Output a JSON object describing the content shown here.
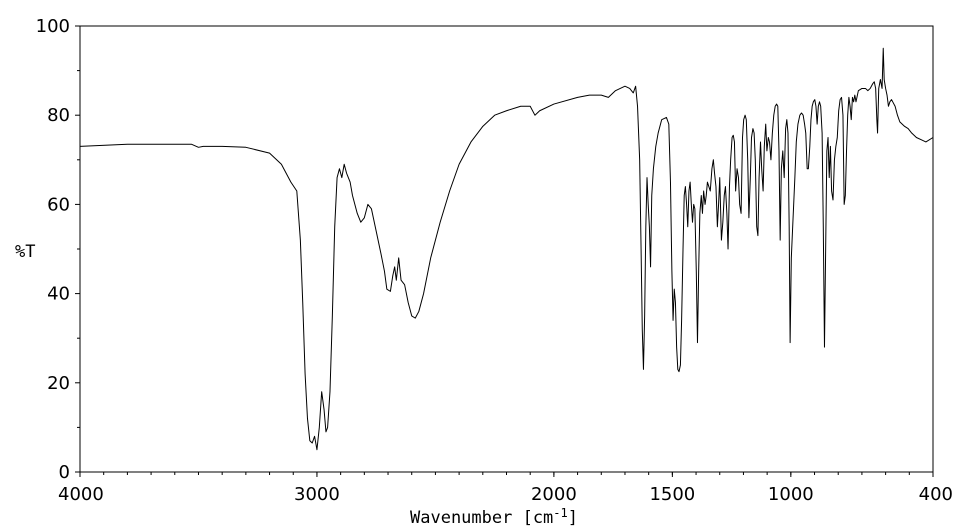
{
  "chart_data": {
    "type": "line",
    "title": "",
    "xlabel": "Wavenumber [cm",
    "xlabel_superscript": "-1",
    "xlabel_close": "]",
    "ylabel": "%T",
    "xlim": [
      4000,
      400
    ],
    "ylim": [
      0,
      100
    ],
    "x_reversed": true,
    "grid": false,
    "x_ticks": [
      {
        "value": 4000,
        "label": "4000"
      },
      {
        "value": 3000,
        "label": "3000"
      },
      {
        "value": 2000,
        "label": "2000"
      },
      {
        "value": 1500,
        "label": "1500"
      },
      {
        "value": 1000,
        "label": "1000"
      },
      {
        "value": 400,
        "label": "400"
      }
    ],
    "y_ticks": [
      {
        "value": 0,
        "label": "0"
      },
      {
        "value": 20,
        "label": "20"
      },
      {
        "value": 40,
        "label": "40"
      },
      {
        "value": 60,
        "label": "60"
      },
      {
        "value": 80,
        "label": "80"
      },
      {
        "value": 100,
        "label": "100"
      }
    ],
    "series": [
      {
        "color": "#000000",
        "points": [
          [
            4000,
            73
          ],
          [
            3800,
            73.5
          ],
          [
            3600,
            73.5
          ],
          [
            3530,
            73.5
          ],
          [
            3500,
            72.8
          ],
          [
            3480,
            73
          ],
          [
            3400,
            73
          ],
          [
            3300,
            72.8
          ],
          [
            3200,
            71.5
          ],
          [
            3150,
            69
          ],
          [
            3110,
            65
          ],
          [
            3085,
            63
          ],
          [
            3070,
            52
          ],
          [
            3060,
            38
          ],
          [
            3050,
            22
          ],
          [
            3040,
            12
          ],
          [
            3030,
            7
          ],
          [
            3020,
            6.5
          ],
          [
            3010,
            8
          ],
          [
            3000,
            5
          ],
          [
            2990,
            10
          ],
          [
            2980,
            18
          ],
          [
            2970,
            14
          ],
          [
            2962,
            9
          ],
          [
            2955,
            10
          ],
          [
            2945,
            18
          ],
          [
            2935,
            35
          ],
          [
            2925,
            55
          ],
          [
            2915,
            66
          ],
          [
            2905,
            68
          ],
          [
            2895,
            66
          ],
          [
            2885,
            69
          ],
          [
            2875,
            67
          ],
          [
            2860,
            65
          ],
          [
            2850,
            62
          ],
          [
            2830,
            58
          ],
          [
            2815,
            56
          ],
          [
            2800,
            57
          ],
          [
            2785,
            60
          ],
          [
            2770,
            59
          ],
          [
            2750,
            54
          ],
          [
            2730,
            49
          ],
          [
            2715,
            45
          ],
          [
            2705,
            41
          ],
          [
            2690,
            40.5
          ],
          [
            2680,
            44
          ],
          [
            2672,
            46
          ],
          [
            2665,
            43
          ],
          [
            2655,
            48
          ],
          [
            2645,
            43
          ],
          [
            2630,
            42
          ],
          [
            2615,
            38
          ],
          [
            2600,
            35
          ],
          [
            2585,
            34.5
          ],
          [
            2570,
            36
          ],
          [
            2550,
            40
          ],
          [
            2520,
            48
          ],
          [
            2480,
            56
          ],
          [
            2440,
            63
          ],
          [
            2400,
            69
          ],
          [
            2350,
            74
          ],
          [
            2300,
            77.5
          ],
          [
            2250,
            80
          ],
          [
            2200,
            81
          ],
          [
            2140,
            82
          ],
          [
            2100,
            82
          ],
          [
            2080,
            80
          ],
          [
            2060,
            81
          ],
          [
            2000,
            82.5
          ],
          [
            1900,
            84
          ],
          [
            1850,
            84.5
          ],
          [
            1800,
            84.5
          ],
          [
            1770,
            84
          ],
          [
            1740,
            85.5
          ],
          [
            1700,
            86.5
          ],
          [
            1680,
            86
          ],
          [
            1665,
            85
          ],
          [
            1655,
            86.5
          ],
          [
            1647,
            82
          ],
          [
            1638,
            70
          ],
          [
            1632,
            50
          ],
          [
            1627,
            32
          ],
          [
            1622,
            23
          ],
          [
            1617,
            35
          ],
          [
            1612,
            55
          ],
          [
            1607,
            66
          ],
          [
            1602,
            60
          ],
          [
            1597,
            55
          ],
          [
            1592,
            46
          ],
          [
            1587,
            62
          ],
          [
            1580,
            68
          ],
          [
            1570,
            73
          ],
          [
            1560,
            76
          ],
          [
            1545,
            79
          ],
          [
            1525,
            79.5
          ],
          [
            1515,
            78
          ],
          [
            1508,
            65
          ],
          [
            1502,
            45
          ],
          [
            1497,
            34
          ],
          [
            1492,
            41
          ],
          [
            1487,
            38
          ],
          [
            1482,
            28
          ],
          [
            1477,
            23
          ],
          [
            1472,
            22.5
          ],
          [
            1466,
            24
          ],
          [
            1461,
            34
          ],
          [
            1455,
            50
          ],
          [
            1450,
            62
          ],
          [
            1445,
            64
          ],
          [
            1440,
            60
          ],
          [
            1435,
            55
          ],
          [
            1430,
            63
          ],
          [
            1425,
            65
          ],
          [
            1420,
            60
          ],
          [
            1415,
            56
          ],
          [
            1410,
            60
          ],
          [
            1405,
            59
          ],
          [
            1399,
            45
          ],
          [
            1394,
            29
          ],
          [
            1389,
            45
          ],
          [
            1384,
            58
          ],
          [
            1378,
            62
          ],
          [
            1373,
            58
          ],
          [
            1368,
            63
          ],
          [
            1362,
            60
          ],
          [
            1357,
            62
          ],
          [
            1352,
            65
          ],
          [
            1346,
            64
          ],
          [
            1340,
            63
          ],
          [
            1333,
            68
          ],
          [
            1327,
            70
          ],
          [
            1322,
            67
          ],
          [
            1316,
            64
          ],
          [
            1310,
            55
          ],
          [
            1305,
            60
          ],
          [
            1300,
            66
          ],
          [
            1293,
            52
          ],
          [
            1287,
            56
          ],
          [
            1281,
            62
          ],
          [
            1276,
            64
          ],
          [
            1270,
            58
          ],
          [
            1265,
            50
          ],
          [
            1259,
            64
          ],
          [
            1254,
            70
          ],
          [
            1248,
            75
          ],
          [
            1243,
            75.5
          ],
          [
            1238,
            74
          ],
          [
            1233,
            63
          ],
          [
            1227,
            68
          ],
          [
            1221,
            66
          ],
          [
            1216,
            60
          ],
          [
            1210,
            58
          ],
          [
            1204,
            75
          ],
          [
            1199,
            79
          ],
          [
            1193,
            80
          ],
          [
            1188,
            79
          ],
          [
            1182,
            70
          ],
          [
            1177,
            57
          ],
          [
            1171,
            66
          ],
          [
            1166,
            75
          ],
          [
            1160,
            77
          ],
          [
            1155,
            76
          ],
          [
            1150,
            70
          ],
          [
            1144,
            55
          ],
          [
            1139,
            53
          ],
          [
            1134,
            66
          ],
          [
            1128,
            74
          ],
          [
            1123,
            68
          ],
          [
            1117,
            63
          ],
          [
            1112,
            73
          ],
          [
            1106,
            78
          ],
          [
            1101,
            72
          ],
          [
            1095,
            75
          ],
          [
            1090,
            74
          ],
          [
            1084,
            70
          ],
          [
            1078,
            76
          ],
          [
            1072,
            80
          ],
          [
            1066,
            82
          ],
          [
            1060,
            82.5
          ],
          [
            1055,
            82
          ],
          [
            1050,
            72
          ],
          [
            1045,
            52
          ],
          [
            1040,
            68
          ],
          [
            1034,
            72
          ],
          [
            1028,
            66
          ],
          [
            1022,
            77
          ],
          [
            1017,
            79
          ],
          [
            1012,
            76
          ],
          [
            1007,
            55
          ],
          [
            1003,
            29
          ],
          [
            998,
            48
          ],
          [
            993,
            54
          ],
          [
            988,
            60
          ],
          [
            983,
            66
          ],
          [
            977,
            74
          ],
          [
            970,
            78
          ],
          [
            962,
            80
          ],
          [
            955,
            80.5
          ],
          [
            948,
            80
          ],
          [
            942,
            78
          ],
          [
            937,
            76
          ],
          [
            931,
            68
          ],
          [
            926,
            68
          ],
          [
            920,
            73
          ],
          [
            915,
            79
          ],
          [
            910,
            82
          ],
          [
            905,
            83
          ],
          [
            899,
            83.5
          ],
          [
            894,
            82
          ],
          [
            889,
            78
          ],
          [
            884,
            82
          ],
          [
            879,
            83
          ],
          [
            874,
            82
          ],
          [
            868,
            76
          ],
          [
            863,
            55
          ],
          [
            858,
            28
          ],
          [
            853,
            50
          ],
          [
            848,
            72
          ],
          [
            843,
            75
          ],
          [
            838,
            66
          ],
          [
            833,
            73
          ],
          [
            828,
            63
          ],
          [
            822,
            61
          ],
          [
            816,
            70
          ],
          [
            810,
            73
          ],
          [
            804,
            75
          ],
          [
            798,
            81
          ],
          [
            792,
            83.5
          ],
          [
            786,
            84
          ],
          [
            780,
            80
          ],
          [
            775,
            60
          ],
          [
            770,
            62
          ],
          [
            765,
            72
          ],
          [
            760,
            80
          ],
          [
            755,
            84
          ],
          [
            750,
            82
          ],
          [
            745,
            79
          ],
          [
            740,
            84
          ],
          [
            735,
            83
          ],
          [
            730,
            84.5
          ],
          [
            725,
            83
          ],
          [
            715,
            85.5
          ],
          [
            700,
            86
          ],
          [
            685,
            86
          ],
          [
            675,
            85.5
          ],
          [
            665,
            86
          ],
          [
            655,
            87
          ],
          [
            648,
            87.5
          ],
          [
            642,
            86
          ],
          [
            637,
            79
          ],
          [
            634,
            76
          ],
          [
            629,
            86
          ],
          [
            622,
            88
          ],
          [
            615,
            86
          ],
          [
            610,
            95
          ],
          [
            606,
            88
          ],
          [
            600,
            86
          ],
          [
            594,
            84.5
          ],
          [
            588,
            82
          ],
          [
            582,
            83
          ],
          [
            575,
            83.5
          ],
          [
            570,
            83
          ],
          [
            560,
            82
          ],
          [
            550,
            80
          ],
          [
            540,
            78.5
          ],
          [
            520,
            77.5
          ],
          [
            505,
            77
          ],
          [
            490,
            76
          ],
          [
            470,
            75
          ],
          [
            450,
            74.5
          ],
          [
            430,
            74
          ],
          [
            400,
            75
          ]
        ]
      }
    ]
  }
}
